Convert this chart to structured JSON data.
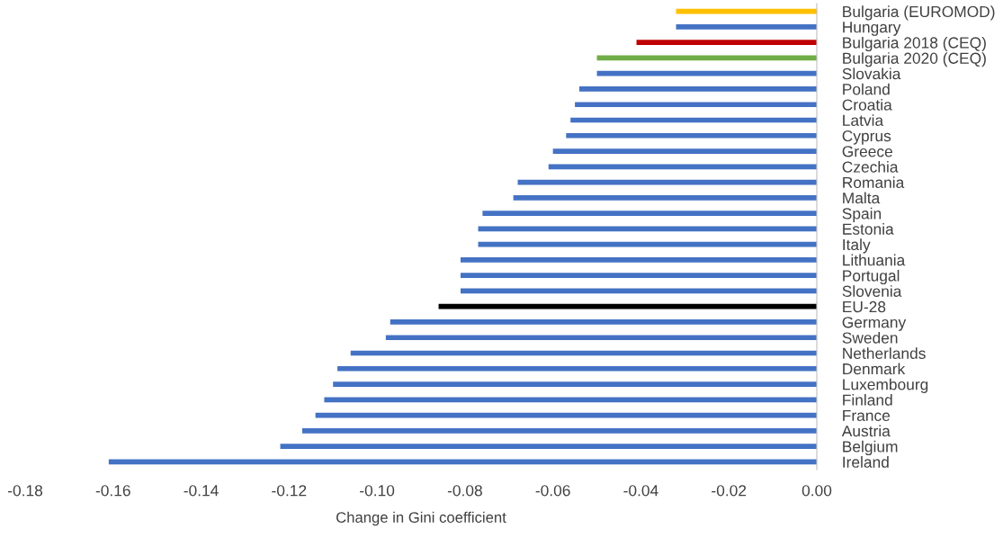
{
  "chart_data": {
    "type": "bar",
    "orientation": "horizontal",
    "xlabel": "Change in Gini coefficient",
    "categories": [
      "Bulgaria (EUROMOD)",
      "Hungary",
      "Bulgaria 2018 (CEQ)",
      "Bulgaria 2020 (CEQ)",
      "Slovakia",
      "Poland",
      "Croatia",
      "Latvia",
      "Cyprus",
      "Greece",
      "Czechia",
      "Romania",
      "Malta",
      "Spain",
      "Estonia",
      "Italy",
      "Lithuania",
      "Portugal",
      "Slovenia",
      "EU-28",
      "Germany",
      "Sweden",
      "Netherlands",
      "Denmark",
      "Luxembourg",
      "Finland",
      "France",
      "Austria",
      "Belgium",
      "Ireland"
    ],
    "values": [
      -0.032,
      -0.032,
      -0.041,
      -0.05,
      -0.05,
      -0.054,
      -0.055,
      -0.056,
      -0.057,
      -0.06,
      -0.061,
      -0.068,
      -0.069,
      -0.076,
      -0.077,
      -0.077,
      -0.081,
      -0.081,
      -0.081,
      -0.086,
      -0.097,
      -0.098,
      -0.106,
      -0.109,
      -0.11,
      -0.112,
      -0.114,
      -0.117,
      -0.122,
      -0.161
    ],
    "colors": [
      "#ffc000",
      "#4472c4",
      "#c00000",
      "#70ad47",
      "#4472c4",
      "#4472c4",
      "#4472c4",
      "#4472c4",
      "#4472c4",
      "#4472c4",
      "#4472c4",
      "#4472c4",
      "#4472c4",
      "#4472c4",
      "#4472c4",
      "#4472c4",
      "#4472c4",
      "#4472c4",
      "#4472c4",
      "#000000",
      "#4472c4",
      "#4472c4",
      "#4472c4",
      "#4472c4",
      "#4472c4",
      "#4472c4",
      "#4472c4",
      "#4472c4",
      "#4472c4",
      "#4472c4"
    ],
    "xlim": [
      -0.18,
      0
    ],
    "xticks": [
      {
        "value": -0.18,
        "label": "-0.18"
      },
      {
        "value": -0.16,
        "label": "-0.16"
      },
      {
        "value": -0.14,
        "label": "-0.14"
      },
      {
        "value": -0.12,
        "label": "-0.12"
      },
      {
        "value": -0.1,
        "label": "-0.10"
      },
      {
        "value": -0.08,
        "label": "-0.08"
      },
      {
        "value": -0.06,
        "label": "-0.06"
      },
      {
        "value": -0.04,
        "label": "-0.04"
      },
      {
        "value": -0.02,
        "label": "-0.02"
      },
      {
        "value": 0,
        "label": "0.00"
      }
    ],
    "grid": false,
    "legend": false
  }
}
